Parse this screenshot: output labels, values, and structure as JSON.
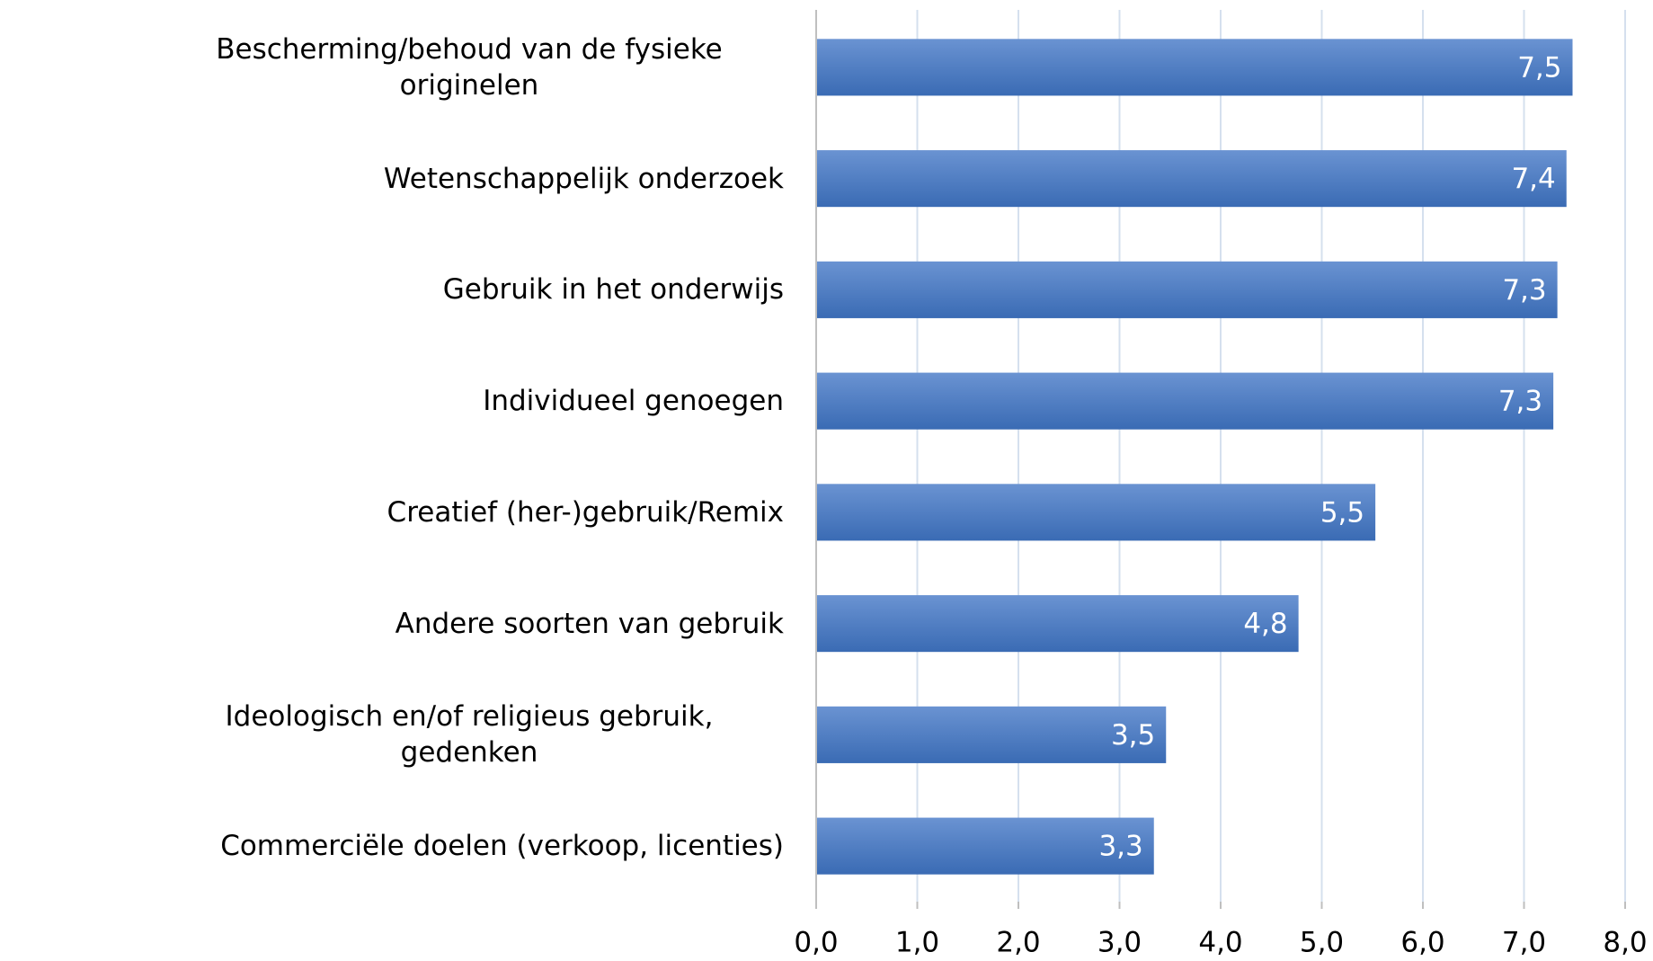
{
  "chart_data": {
    "type": "bar",
    "orientation": "horizontal",
    "categories": [
      "Bescherming/behoud van de fysieke originelen",
      "Wetenschappelijk onderzoek",
      "Gebruik in het onderwijs",
      "Individueel genoegen",
      "Creatief (her-)gebruik/Remix",
      "Andere soorten van gebruik",
      "Ideologisch en/of religieus gebruik, gedenken",
      "Commerciële doelen (verkoop, licenties)"
    ],
    "values": [
      7.48,
      7.42,
      7.33,
      7.29,
      5.53,
      4.77,
      3.46,
      3.34
    ],
    "value_labels": [
      "7,5",
      "7,4",
      "7,3",
      "7,3",
      "5,5",
      "4,8",
      "3,5",
      "3,3"
    ],
    "color": "#4a7cc4",
    "xlim": [
      0,
      8
    ],
    "xticks": [
      {
        "value": 0,
        "label": "0,0"
      },
      {
        "value": 1,
        "label": "1,0"
      },
      {
        "value": 2,
        "label": "2,0"
      },
      {
        "value": 3,
        "label": "3,0"
      },
      {
        "value": 4,
        "label": "4,0"
      },
      {
        "value": 5,
        "label": "5,0"
      },
      {
        "value": 6,
        "label": "6,0"
      },
      {
        "value": 7,
        "label": "7,0"
      },
      {
        "value": 8,
        "label": "8,0"
      }
    ],
    "grid": true
  }
}
